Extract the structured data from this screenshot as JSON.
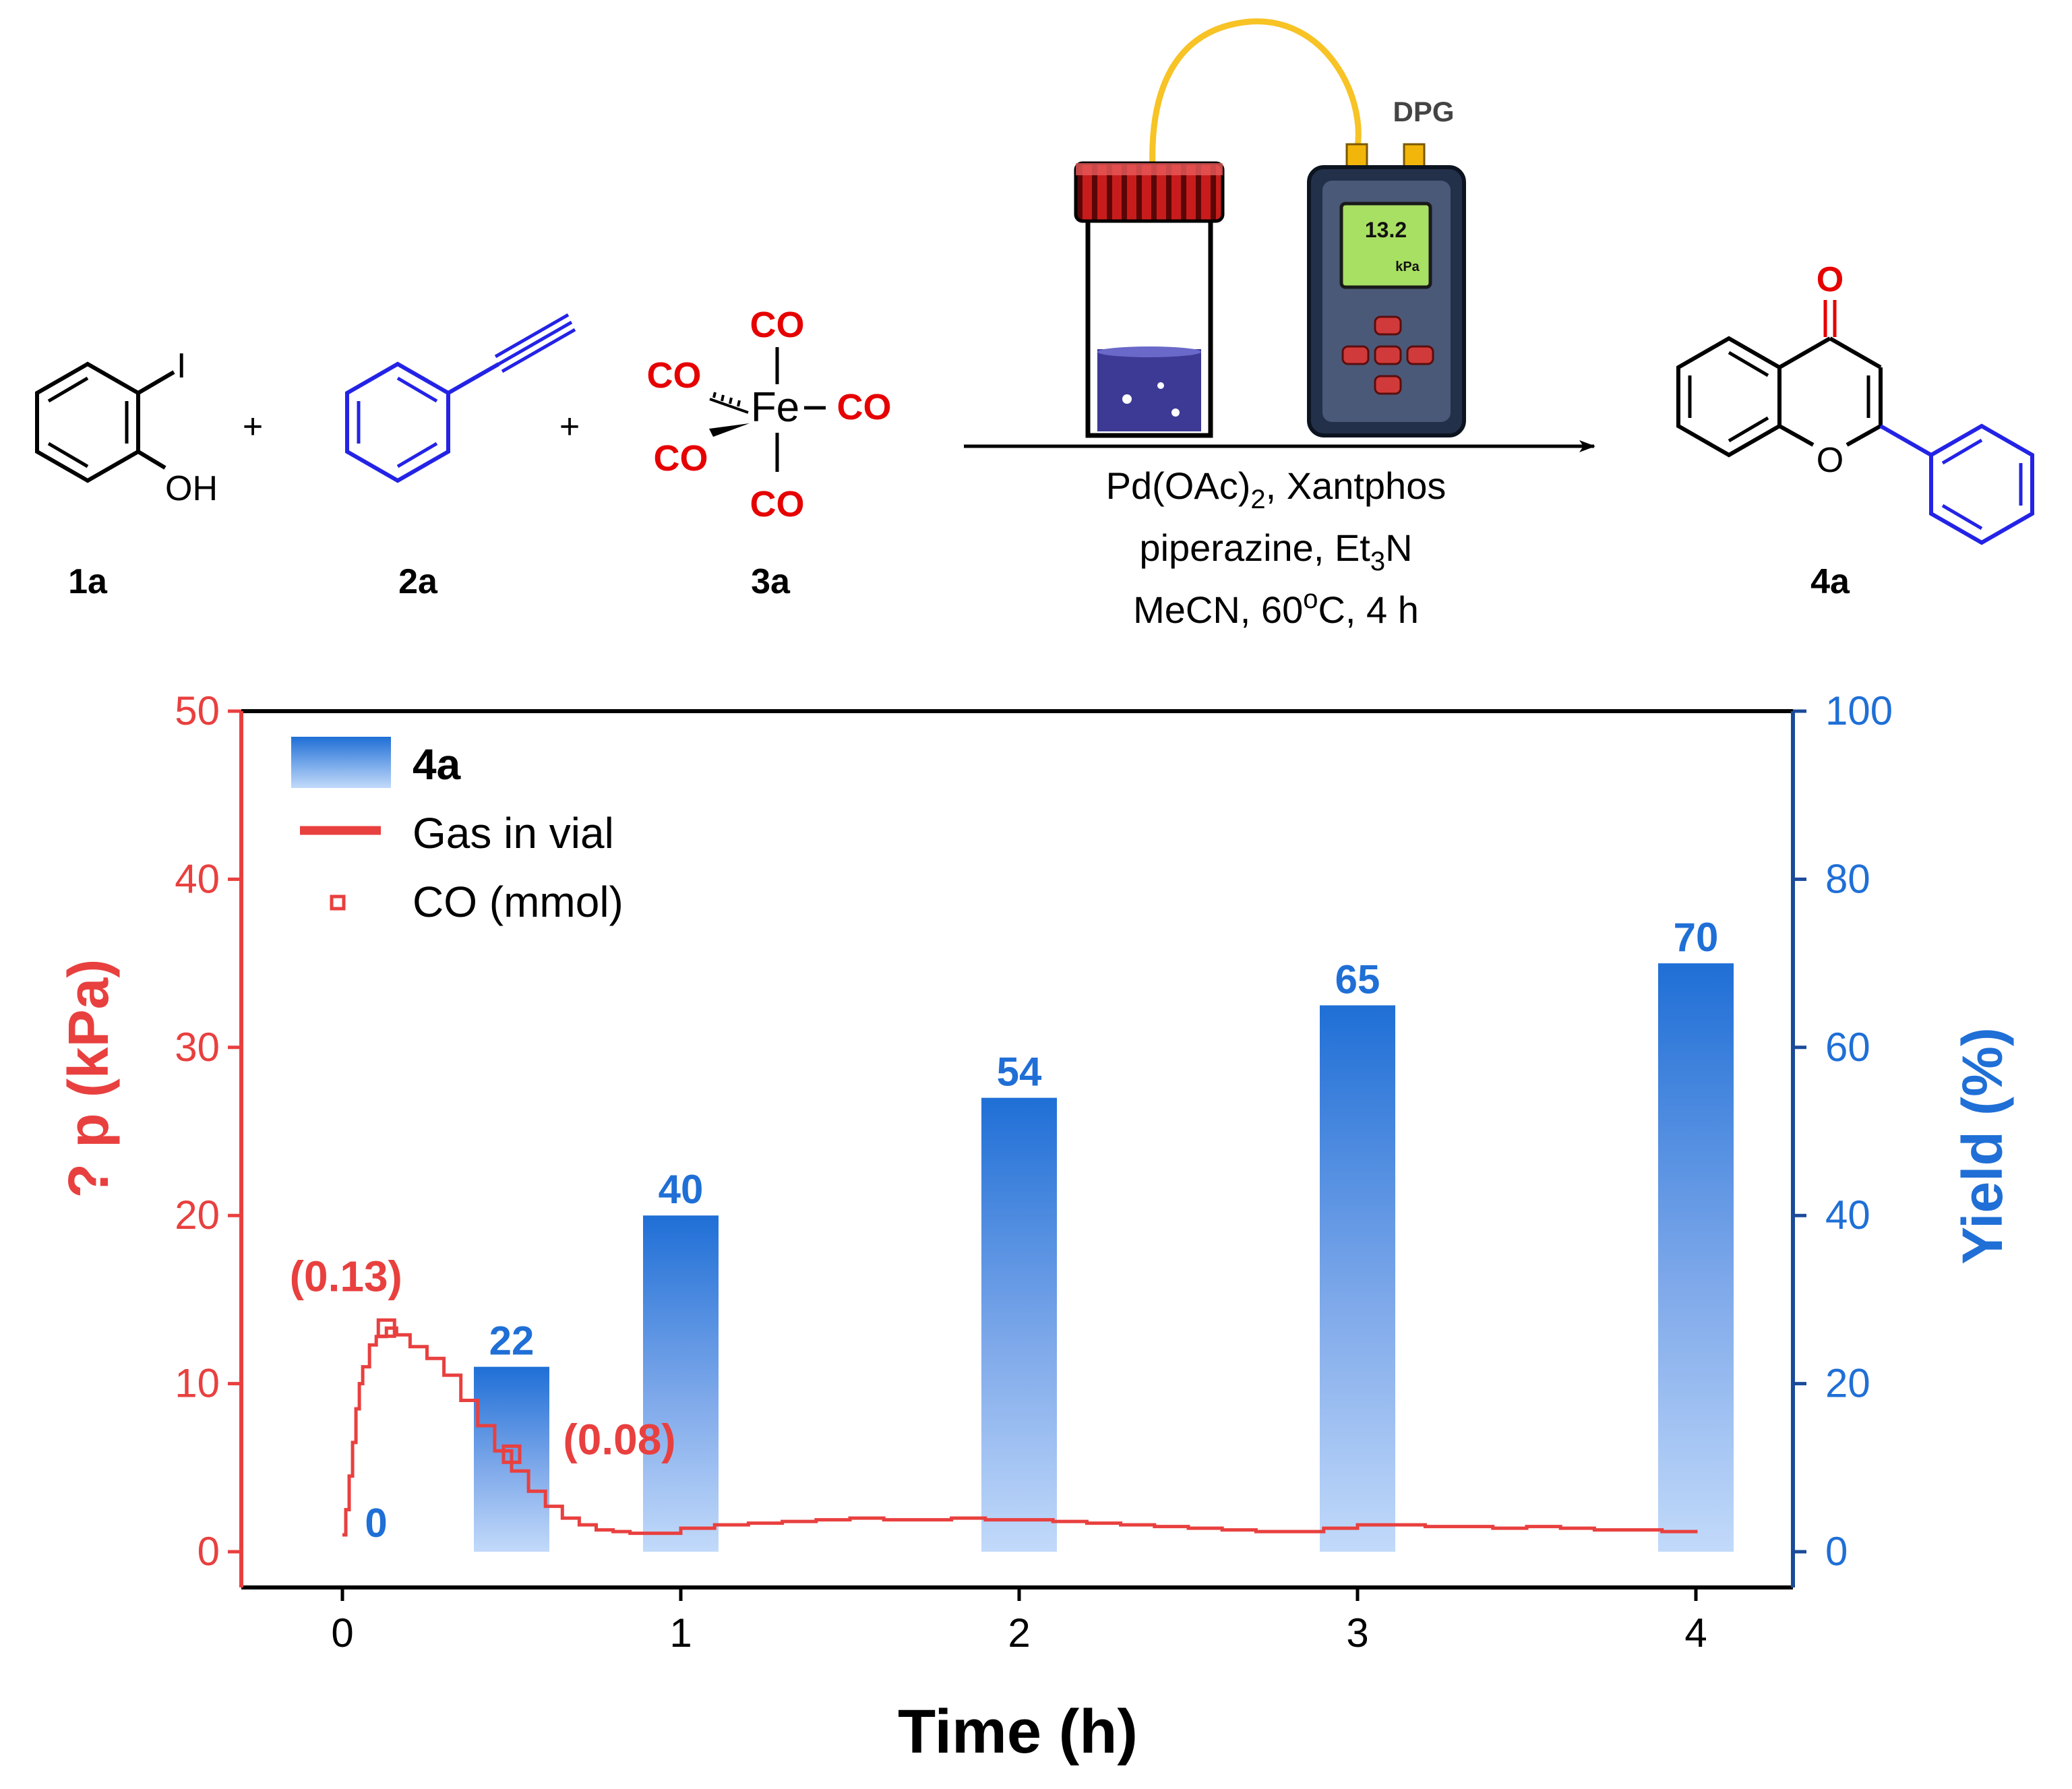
{
  "scheme": {
    "reactants": [
      {
        "id": "1a",
        "substituents": [
          "I",
          "OH"
        ]
      },
      {
        "id": "2a"
      },
      {
        "id": "3a",
        "metal": "Fe",
        "ligand": "CO"
      }
    ],
    "plus": "+",
    "product": {
      "id": "4a",
      "carbonyl": "O",
      "ring_o": "O"
    },
    "conditions": {
      "line1": "Pd(OAc)",
      "line1_sub": "2",
      "line1_tail": ", Xantphos",
      "line2": "piperazine, Et",
      "line2_sub": "3",
      "line2_tail": "N",
      "line3": "MeCN, 60",
      "line3_sup": "o",
      "line3_tail": "C, 4 h"
    },
    "device": {
      "label": "DPG",
      "reading": "13.2",
      "unit": "kPa"
    }
  },
  "colors": {
    "pressure": "#e8403f",
    "yield": "#1f6fd6",
    "yield_light": "#c2dafa",
    "reactant2": "#2323e6",
    "co_red": "#e60000",
    "cable": "#f7c325",
    "screen": "#a8e063"
  },
  "chart_data": {
    "type": "bar",
    "xlabel": "Time (h)",
    "ylabel_left": "? p (kPa)",
    "ylabel_right": "Yield (%)",
    "x_ticks": [
      "0",
      "1",
      "2",
      "3",
      "4"
    ],
    "xlim": [
      -0.3,
      4.3
    ],
    "ylim_left": [
      0,
      50
    ],
    "ylim_right": [
      0,
      100
    ],
    "left_ticks": [
      "0",
      "10",
      "20",
      "30",
      "40",
      "50"
    ],
    "right_ticks": [
      "0",
      "20",
      "40",
      "60",
      "80",
      "100"
    ],
    "legend": {
      "position": "top-left",
      "entries": [
        "4a",
        "Gas in vial",
        "CO (mmol)"
      ]
    },
    "series": [
      {
        "name": "4a",
        "kind": "bar",
        "axis": "right",
        "x": [
          0,
          0.5,
          1,
          2,
          3,
          4
        ],
        "values": [
          0,
          22,
          40,
          54,
          65,
          70
        ],
        "labels": [
          "0",
          "22",
          "40",
          "54",
          "65",
          "70"
        ]
      },
      {
        "name": "Gas in vial",
        "kind": "line",
        "axis": "left",
        "x": [
          0,
          0.01,
          0.02,
          0.03,
          0.04,
          0.05,
          0.06,
          0.08,
          0.1,
          0.13,
          0.16,
          0.2,
          0.25,
          0.3,
          0.35,
          0.4,
          0.45,
          0.5,
          0.55,
          0.6,
          0.65,
          0.7,
          0.75,
          0.8,
          0.85,
          0.9,
          1.0,
          1.1,
          1.2,
          1.3,
          1.4,
          1.5,
          1.6,
          1.7,
          1.8,
          1.9,
          2.0,
          2.1,
          2.2,
          2.3,
          2.4,
          2.5,
          2.6,
          2.7,
          2.8,
          2.9,
          3.0,
          3.1,
          3.2,
          3.3,
          3.4,
          3.5,
          3.6,
          3.7,
          3.8,
          3.9,
          4.0
        ],
        "y": [
          1.0,
          2.5,
          4.5,
          6.5,
          8.5,
          10.0,
          11.0,
          12.3,
          12.8,
          13.3,
          12.9,
          12.2,
          11.5,
          10.5,
          9.0,
          7.5,
          6.0,
          4.8,
          3.6,
          2.7,
          2.0,
          1.6,
          1.3,
          1.2,
          1.1,
          1.1,
          1.4,
          1.6,
          1.7,
          1.8,
          1.9,
          2.0,
          1.9,
          1.9,
          2.0,
          1.9,
          1.9,
          1.8,
          1.7,
          1.6,
          1.5,
          1.4,
          1.3,
          1.2,
          1.2,
          1.4,
          1.6,
          1.6,
          1.5,
          1.5,
          1.4,
          1.5,
          1.4,
          1.3,
          1.3,
          1.2,
          1.3
        ]
      },
      {
        "name": "CO (mmol)",
        "kind": "marker",
        "axis": "left",
        "points": [
          {
            "x": 0.13,
            "y": 13.3,
            "label": "(0.13)"
          },
          {
            "x": 0.5,
            "y": 5.8,
            "label": "(0.08)"
          }
        ]
      }
    ]
  }
}
